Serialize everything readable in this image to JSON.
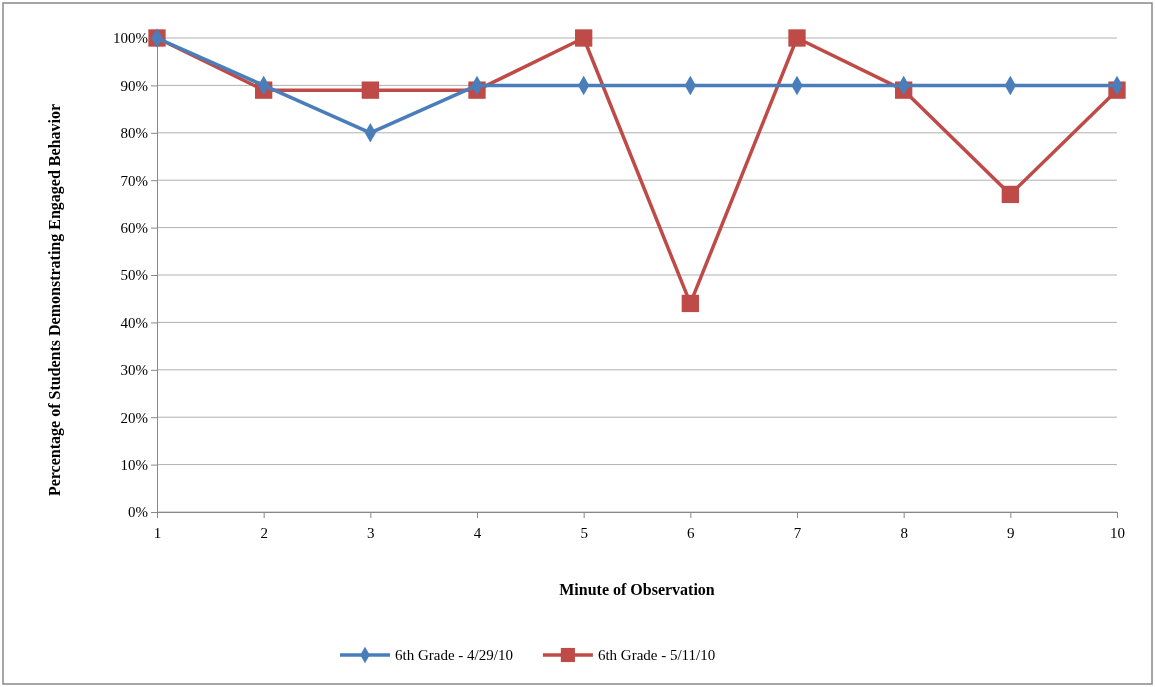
{
  "chart_data": {
    "type": "line",
    "xlabel": "Minute of Observation",
    "ylabel": "Percentage of Students Demonstrating Engaged Behavior",
    "categories": [
      "1",
      "2",
      "3",
      "4",
      "5",
      "6",
      "7",
      "8",
      "9",
      "10"
    ],
    "series": [
      {
        "name": "6th Grade - 4/29/10",
        "color": "#4a7ebb",
        "marker": "diamond",
        "values": [
          100,
          90,
          80,
          90,
          90,
          90,
          90,
          90,
          90,
          90
        ]
      },
      {
        "name": "6th Grade - 5/11/10",
        "color": "#be4b48",
        "marker": "square",
        "values": [
          100,
          89,
          89,
          89,
          100,
          44,
          100,
          89,
          67,
          89
        ]
      }
    ],
    "ylim": [
      0,
      100
    ],
    "yticks": [
      {
        "value": 0,
        "label": "0%"
      },
      {
        "value": 10,
        "label": "10%"
      },
      {
        "value": 20,
        "label": "20%"
      },
      {
        "value": 30,
        "label": "30%"
      },
      {
        "value": 40,
        "label": "40%"
      },
      {
        "value": 50,
        "label": "50%"
      },
      {
        "value": 60,
        "label": "60%"
      },
      {
        "value": 70,
        "label": "70%"
      },
      {
        "value": 80,
        "label": "80%"
      },
      {
        "value": 90,
        "label": "90%"
      },
      {
        "value": 100,
        "label": "100%"
      }
    ],
    "grid": "y",
    "legend": "bottom",
    "line_style": "solid"
  }
}
